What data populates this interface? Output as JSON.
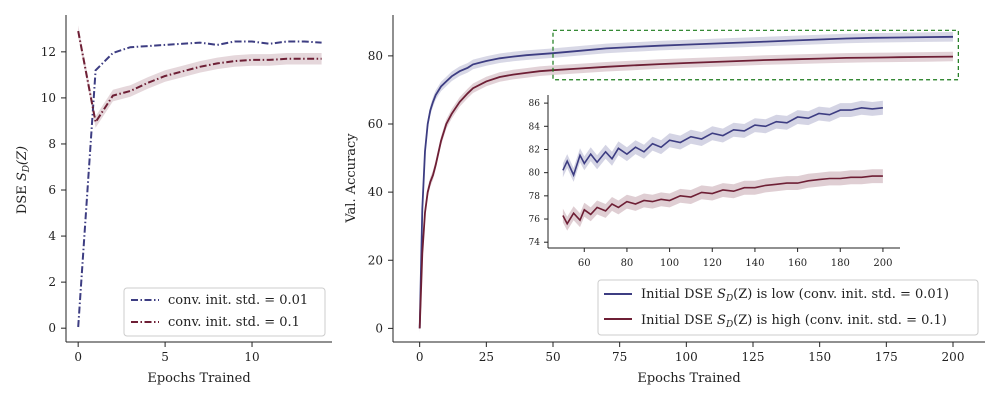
{
  "colors": {
    "low": "#3d3d82",
    "high": "#6e1f35",
    "box": "#1a7a1a",
    "axis": "#222222"
  },
  "chart_data": [
    {
      "type": "line",
      "xlabel": "Epochs Trained",
      "ylabel_prefix": "DSE ",
      "ylabel_sym": "S",
      "ylabel_sub": "D",
      "ylabel_suffix": "(Z)",
      "xlim": [
        -0.7,
        14.6
      ],
      "ylim": [
        -0.6,
        13.6
      ],
      "xticks": [
        0,
        5,
        10
      ],
      "yticks": [
        0,
        2,
        4,
        6,
        8,
        10,
        12
      ],
      "legend": {
        "position": "lower-right",
        "low": "conv. init. std. = 0.01",
        "high": "conv. init. std. = 0.1"
      },
      "series": [
        {
          "name": "conv. init. std. = 0.01",
          "key": "low",
          "style": "dashdot",
          "x": [
            0,
            1,
            2,
            3,
            4,
            5,
            6,
            7,
            8,
            9,
            10,
            11,
            12,
            13,
            14
          ],
          "values": [
            0.05,
            11.2,
            11.95,
            12.2,
            12.25,
            12.3,
            12.35,
            12.4,
            12.3,
            12.45,
            12.45,
            12.35,
            12.45,
            12.45,
            12.4
          ]
        },
        {
          "name": "conv. init. std. = 0.1",
          "key": "high",
          "style": "dashdot",
          "x": [
            0,
            1,
            2,
            3,
            4,
            5,
            6,
            7,
            8,
            9,
            10,
            11,
            12,
            13,
            14
          ],
          "values": [
            12.9,
            8.95,
            10.1,
            10.3,
            10.65,
            10.95,
            11.15,
            11.35,
            11.5,
            11.6,
            11.65,
            11.65,
            11.7,
            11.7,
            11.7
          ]
        }
      ]
    },
    {
      "type": "line",
      "xlabel": "Epochs Trained",
      "ylabel": "Val. Accuracy",
      "xlim": [
        -10,
        212
      ],
      "ylim": [
        -4,
        92
      ],
      "xticks": [
        0,
        25,
        50,
        75,
        100,
        125,
        150,
        175,
        200
      ],
      "yticks": [
        0,
        20,
        40,
        60,
        80
      ],
      "highlight_box": {
        "x": [
          50,
          202
        ],
        "y": [
          73,
          87.5
        ]
      },
      "legend": {
        "position": "lower-right",
        "low": {
          "prefix": "Initial DSE ",
          "sym": "S",
          "sub": "D",
          "suffix": "(Z) is low (conv. init. std. = 0.01)"
        },
        "high": {
          "prefix": "Initial DSE ",
          "sym": "S",
          "sub": "D",
          "suffix": "(Z) is high (conv. init. std. = 0.1)"
        }
      },
      "series": [
        {
          "name": "Initial DSE S_D(Z) is low (conv. init. std. = 0.01)",
          "key": "low",
          "x": [
            0,
            1,
            2,
            3,
            4,
            5,
            6,
            8,
            10,
            12,
            15,
            18,
            20,
            25,
            30,
            35,
            40,
            45,
            50,
            60,
            70,
            80,
            90,
            100,
            110,
            120,
            130,
            140,
            150,
            160,
            170,
            180,
            190,
            200
          ],
          "values": [
            0,
            35,
            52,
            60,
            64,
            66.5,
            68.5,
            71,
            72.5,
            74,
            75.5,
            76.5,
            77.5,
            78.5,
            79.3,
            79.8,
            80.2,
            80.5,
            80.8,
            81.5,
            82.2,
            82.6,
            83,
            83.3,
            83.6,
            83.9,
            84.2,
            84.5,
            84.8,
            85.1,
            85.3,
            85.4,
            85.5,
            85.6
          ]
        },
        {
          "name": "Initial DSE S_D(Z) is high (conv. init. std. = 0.1)",
          "key": "high",
          "x": [
            0,
            1,
            2,
            3,
            4,
            5,
            6,
            8,
            10,
            12,
            15,
            18,
            20,
            25,
            30,
            35,
            40,
            45,
            50,
            60,
            70,
            80,
            90,
            100,
            110,
            120,
            130,
            140,
            150,
            160,
            170,
            180,
            190,
            200
          ],
          "values": [
            0,
            22,
            34,
            40,
            43,
            45,
            48,
            55,
            60,
            63,
            66.5,
            69,
            70.5,
            72.5,
            73.8,
            74.5,
            75,
            75.5,
            75.8,
            76.3,
            76.8,
            77.2,
            77.6,
            77.9,
            78.2,
            78.5,
            78.8,
            79,
            79.2,
            79.4,
            79.5,
            79.6,
            79.7,
            79.8
          ]
        }
      ],
      "inset": {
        "xlim": [
          43,
          208
        ],
        "ylim": [
          73.5,
          86.7
        ],
        "xticks": [
          60,
          80,
          100,
          120,
          140,
          160,
          180,
          200
        ],
        "yticks": [
          74,
          76,
          78,
          80,
          82,
          84,
          86
        ],
        "series": [
          {
            "key": "low",
            "x": [
              50,
              52,
              55,
              58,
              60,
              63,
              66,
              70,
              73,
              76,
              80,
              84,
              88,
              92,
              96,
              100,
              105,
              110,
              115,
              120,
              125,
              130,
              135,
              140,
              145,
              150,
              155,
              160,
              165,
              170,
              175,
              180,
              185,
              190,
              195,
              200
            ],
            "values": [
              80.2,
              81.0,
              79.8,
              81.5,
              80.8,
              81.6,
              80.9,
              81.8,
              81.2,
              82.1,
              81.6,
              82.2,
              81.8,
              82.5,
              82.2,
              82.8,
              82.6,
              83.1,
              82.9,
              83.4,
              83.2,
              83.7,
              83.6,
              84.1,
              84.0,
              84.4,
              84.3,
              84.8,
              84.7,
              85.1,
              85.0,
              85.4,
              85.4,
              85.6,
              85.5,
              85.6
            ]
          },
          {
            "key": "high",
            "x": [
              50,
              52,
              55,
              58,
              60,
              63,
              66,
              70,
              73,
              76,
              80,
              84,
              88,
              92,
              96,
              100,
              105,
              110,
              115,
              120,
              125,
              130,
              135,
              140,
              145,
              150,
              155,
              160,
              165,
              170,
              175,
              180,
              185,
              190,
              195,
              200
            ],
            "values": [
              76.3,
              75.6,
              76.5,
              75.9,
              76.8,
              76.4,
              77.0,
              76.7,
              77.3,
              77.0,
              77.5,
              77.3,
              77.6,
              77.5,
              77.7,
              77.6,
              78.0,
              77.9,
              78.3,
              78.2,
              78.5,
              78.4,
              78.7,
              78.7,
              78.9,
              79.0,
              79.1,
              79.1,
              79.3,
              79.4,
              79.5,
              79.5,
              79.6,
              79.6,
              79.7,
              79.7
            ]
          }
        ]
      }
    }
  ]
}
